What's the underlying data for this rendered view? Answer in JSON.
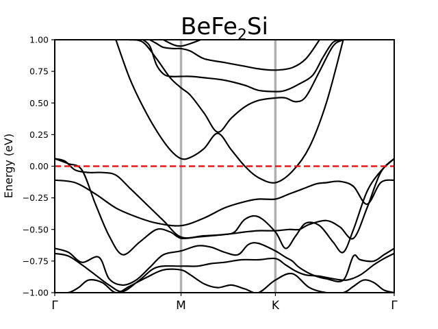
{
  "chart_data": {
    "type": "line",
    "title_main": "BeFe",
    "title_sub": "2",
    "title_end": "Si",
    "xlabel": "",
    "ylabel": "Energy (eV)",
    "ylim": [
      -1.0,
      1.0
    ],
    "yticks": [
      1.0,
      0.75,
      0.5,
      0.25,
      0.0,
      -0.25,
      -0.5,
      -0.75,
      -1.0
    ],
    "ytick_labels": [
      "1.00",
      "0.75",
      "0.50",
      "0.25",
      "0.00",
      "−0.25",
      "−0.50",
      "−0.75",
      "−1.00"
    ],
    "xlim": [
      0,
      1
    ],
    "high_symmetry_points": [
      {
        "label": "Γ",
        "x": 0.0
      },
      {
        "label": "M",
        "x": 0.372
      },
      {
        "label": "K",
        "x": 0.65
      },
      {
        "label": "Γ",
        "x": 1.0
      }
    ],
    "fermi_level": 0.0,
    "colors": {
      "bands": "#000000",
      "fermi": "#e41a1c",
      "symmetry_lines": "#b0b0b0"
    },
    "series": [
      {
        "x": [
          0.0,
          0.06,
          0.12,
          0.18,
          0.24,
          0.3,
          0.372,
          0.44,
          0.5,
          0.56,
          0.6,
          0.65,
          0.69,
          0.73,
          0.77,
          0.8,
          0.84,
          0.88,
          0.92,
          0.96,
          1.0
        ],
        "y": [
          -0.11,
          -0.13,
          -0.22,
          -0.33,
          -0.4,
          -0.45,
          -0.47,
          -0.41,
          -0.33,
          -0.28,
          -0.26,
          -0.26,
          -0.22,
          -0.18,
          -0.14,
          -0.13,
          -0.12,
          -0.16,
          -0.3,
          -0.13,
          -0.11
        ]
      },
      {
        "x": [
          0.0,
          0.03,
          0.06,
          0.1,
          0.14,
          0.18,
          0.22,
          0.27,
          0.32,
          0.372,
          0.44,
          0.5,
          0.56,
          0.6,
          0.65,
          0.69,
          0.72,
          0.75,
          0.8,
          0.84,
          0.88,
          0.92,
          0.96,
          1.0
        ],
        "y": [
          0.06,
          0.04,
          -0.03,
          -0.05,
          -0.05,
          -0.07,
          -0.17,
          -0.3,
          -0.43,
          -0.56,
          -0.55,
          -0.54,
          -0.52,
          -0.51,
          -0.51,
          -0.5,
          -0.5,
          -0.46,
          -0.43,
          -0.48,
          -0.57,
          -0.33,
          -0.05,
          0.06
        ]
      },
      {
        "x": [
          0.0,
          0.04,
          0.08,
          0.12,
          0.16,
          0.2,
          0.25,
          0.3,
          0.34,
          0.372,
          0.42,
          0.46,
          0.5,
          0.53,
          0.56,
          0.6,
          0.65,
          0.68,
          0.71,
          0.74,
          0.78,
          0.82,
          0.85,
          0.88,
          0.92,
          0.96,
          1.0
        ],
        "y": [
          0.06,
          0.02,
          -0.03,
          -0.3,
          -0.55,
          -0.7,
          -0.6,
          -0.5,
          -0.52,
          -0.57,
          -0.56,
          -0.55,
          -0.54,
          -0.52,
          -0.42,
          -0.4,
          -0.52,
          -0.65,
          -0.55,
          -0.45,
          -0.47,
          -0.6,
          -0.68,
          -0.5,
          -0.2,
          -0.04,
          0.06
        ]
      },
      {
        "x": [
          0.0,
          0.04,
          0.08,
          0.13,
          0.16,
          0.2,
          0.24,
          0.28,
          0.32,
          0.372,
          0.42,
          0.46,
          0.5,
          0.54,
          0.57,
          0.6,
          0.65,
          0.68,
          0.7,
          0.72,
          0.76,
          0.8,
          0.85,
          0.88,
          0.9,
          0.94,
          0.97,
          1.0
        ],
        "y": [
          -0.65,
          -0.68,
          -0.76,
          -0.72,
          -0.89,
          -0.94,
          -0.9,
          -0.8,
          -0.7,
          -0.67,
          -0.63,
          -0.64,
          -0.68,
          -0.7,
          -0.62,
          -0.61,
          -0.67,
          -0.72,
          -0.75,
          -0.8,
          -0.86,
          -0.89,
          -0.9,
          -0.71,
          -0.74,
          -0.75,
          -0.7,
          -0.65
        ]
      },
      {
        "x": [
          0.0,
          0.04,
          0.08,
          0.12,
          0.16,
          0.2,
          0.25,
          0.3,
          0.372,
          0.42,
          0.46,
          0.5,
          0.55,
          0.6,
          0.65,
          0.68,
          0.71,
          0.74,
          0.78,
          0.82,
          0.86,
          0.9,
          0.94,
          0.97,
          1.0
        ],
        "y": [
          -0.69,
          -0.71,
          -0.78,
          -0.86,
          -0.94,
          -0.99,
          -0.9,
          -0.8,
          -0.79,
          -0.79,
          -0.77,
          -0.76,
          -0.74,
          -0.74,
          -0.73,
          -0.78,
          -0.83,
          -0.86,
          -0.87,
          -0.89,
          -0.9,
          -0.86,
          -0.78,
          -0.73,
          -0.69
        ]
      },
      {
        "x": [
          0.0,
          0.04,
          0.07,
          0.1,
          0.14,
          0.18,
          0.22,
          0.27,
          0.32,
          0.372,
          0.4,
          0.44,
          0.48,
          0.52,
          0.56,
          0.6,
          0.65,
          0.7,
          0.75,
          0.8,
          0.85,
          0.88,
          0.91,
          0.94,
          0.97,
          1.0
        ],
        "y": [
          -1.0,
          -1.0,
          -0.96,
          -0.9,
          -0.92,
          -1.0,
          -0.95,
          -0.88,
          -0.82,
          -0.82,
          -0.86,
          -0.93,
          -0.96,
          -0.94,
          -0.97,
          -1.0,
          -0.9,
          -0.85,
          -0.96,
          -1.0,
          -1.0,
          -0.95,
          -0.9,
          -0.92,
          -0.98,
          -1.0
        ]
      },
      {
        "x": [
          0.18,
          0.22,
          0.26,
          0.3,
          0.34,
          0.372,
          0.4,
          0.44,
          0.48,
          0.52,
          0.56,
          0.6,
          0.65,
          0.7,
          0.75,
          0.8,
          0.85
        ],
        "y": [
          1.0,
          0.7,
          0.47,
          0.28,
          0.13,
          0.06,
          0.07,
          0.14,
          0.26,
          0.13,
          0.0,
          -0.09,
          -0.13,
          -0.04,
          0.15,
          0.5,
          1.0
        ]
      },
      {
        "x": [
          0.18,
          0.22,
          0.26,
          0.3,
          0.34,
          0.372,
          0.4,
          0.44,
          0.48,
          0.52,
          0.56,
          0.6,
          0.65,
          0.68,
          0.71,
          0.74,
          0.78,
          0.82,
          0.85
        ],
        "y": [
          1.0,
          1.0,
          0.98,
          0.85,
          0.7,
          0.62,
          0.56,
          0.42,
          0.27,
          0.38,
          0.47,
          0.52,
          0.54,
          0.54,
          0.51,
          0.55,
          0.75,
          0.95,
          1.0
        ]
      },
      {
        "x": [
          0.26,
          0.28,
          0.3,
          0.32,
          0.34,
          0.372,
          0.4,
          0.44,
          0.5,
          0.56,
          0.6,
          0.65,
          0.68,
          0.72,
          0.76,
          0.79,
          0.82,
          0.85
        ],
        "y": [
          1.0,
          0.95,
          0.8,
          0.73,
          0.71,
          0.71,
          0.71,
          0.7,
          0.68,
          0.64,
          0.6,
          0.59,
          0.6,
          0.65,
          0.72,
          0.86,
          0.98,
          1.0
        ]
      },
      {
        "x": [
          0.28,
          0.3,
          0.32,
          0.35,
          0.372,
          0.4,
          0.44,
          0.5,
          0.56,
          0.6,
          0.65,
          0.7,
          0.74,
          0.78
        ],
        "y": [
          1.0,
          0.97,
          0.94,
          0.93,
          0.93,
          0.91,
          0.85,
          0.82,
          0.79,
          0.77,
          0.76,
          0.78,
          0.85,
          1.0
        ]
      },
      {
        "x": [
          0.32,
          0.35,
          0.372,
          0.4,
          0.43
        ],
        "y": [
          1.0,
          0.96,
          0.95,
          0.97,
          1.0
        ]
      }
    ]
  }
}
